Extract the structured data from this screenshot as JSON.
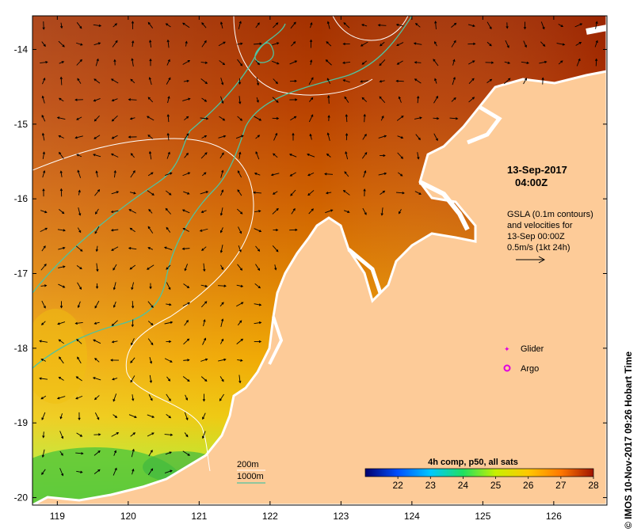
{
  "map": {
    "bounds": {
      "lon_min": 118.65,
      "lon_max": 126.75,
      "lat_min": -20.1,
      "lat_max": -13.55
    },
    "lon_ticks": [
      {
        "value": 119,
        "label": "119"
      },
      {
        "value": 120,
        "label": "120"
      },
      {
        "value": 121,
        "label": "121"
      },
      {
        "value": 122,
        "label": "122"
      },
      {
        "value": 123,
        "label": "123"
      },
      {
        "value": 124,
        "label": "124"
      },
      {
        "value": 125,
        "label": "125"
      },
      {
        "value": 126,
        "label": "126"
      }
    ],
    "lat_ticks": [
      {
        "value": -14,
        "label": "-14"
      },
      {
        "value": -15,
        "label": "-15"
      },
      {
        "value": -16,
        "label": "-16"
      },
      {
        "value": -17,
        "label": "-17"
      },
      {
        "value": -18,
        "label": "-18"
      },
      {
        "value": -19,
        "label": "-19"
      },
      {
        "value": -20,
        "label": "-20"
      }
    ],
    "land_color": "#fdcb98",
    "coast_color": "#ffffff",
    "isobath_200_color": "#ffffff",
    "isobath_1000_color": "#4fc3a0"
  },
  "annotations": {
    "date": "13-Sep-2017",
    "time": "04:00Z",
    "gsla_lines": [
      "GSLA (0.1m contours)",
      "and velocities for",
      "13-Sep 00:00Z",
      "0.5m/s (1kt 24h)"
    ],
    "glider_label": "Glider",
    "argo_label": "Argo",
    "isobath_200_label": "200m",
    "isobath_1000_label": "1000m",
    "credit": "© IMOS 10-Nov-2017 09:26 Hobart Time"
  },
  "legend": {
    "title": "4h comp, p50, all sats",
    "min": 21,
    "max": 28,
    "ticks": [
      {
        "value": 22,
        "label": "22"
      },
      {
        "value": 23,
        "label": "23"
      },
      {
        "value": 24,
        "label": "24"
      },
      {
        "value": 25,
        "label": "25"
      },
      {
        "value": 26,
        "label": "26"
      },
      {
        "value": 27,
        "label": "27"
      },
      {
        "value": 28,
        "label": "28"
      }
    ],
    "stops": [
      "#00006e",
      "#0050ff",
      "#00c8ff",
      "#20e060",
      "#c8f000",
      "#ffc800",
      "#ff7800",
      "#a01400"
    ]
  },
  "sst_colors": {
    "north": "#a83000",
    "mid": "#d46800",
    "south": "#f0b010",
    "far_south": "#b8e020",
    "green": "#40c840"
  }
}
